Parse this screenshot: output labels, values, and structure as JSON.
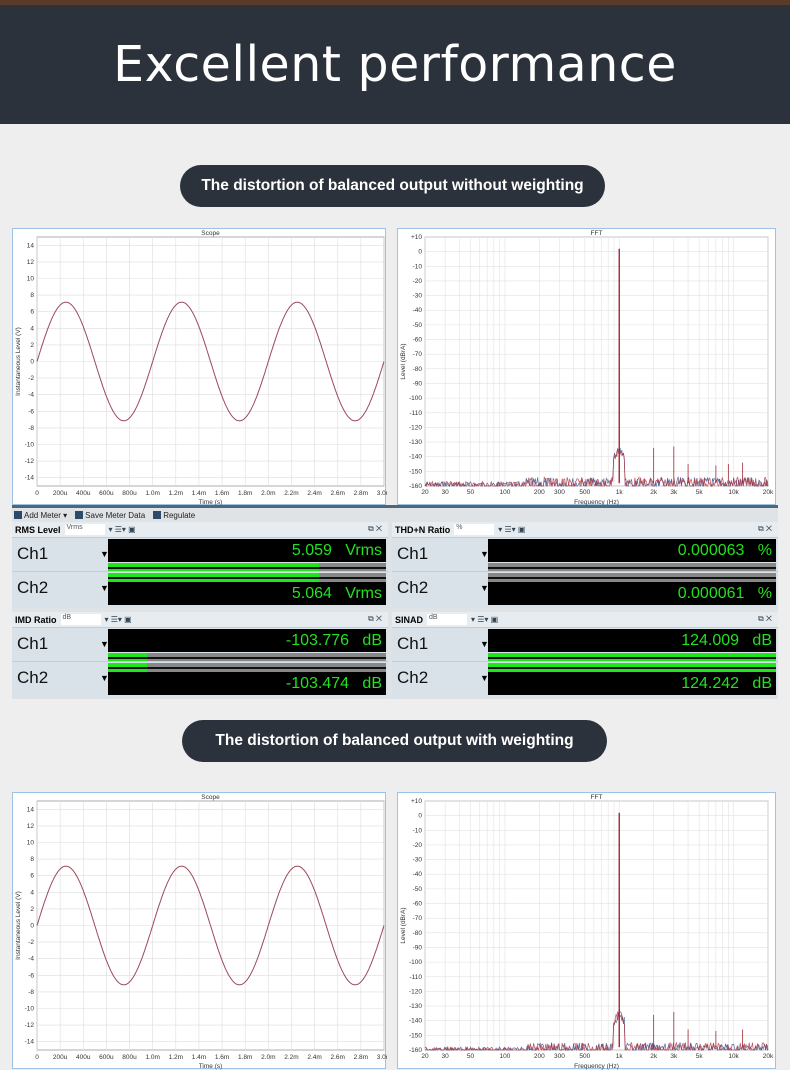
{
  "header": {
    "title": "Excellent performance"
  },
  "section1": {
    "label": "The distortion of balanced output without weighting"
  },
  "section2": {
    "label": "The distortion of balanced output with weighting"
  },
  "toolbar": {
    "add_meter": "Add Meter",
    "save_meter_data": "Save Meter Data",
    "regulate": "Regulate"
  },
  "meters": [
    {
      "title": "RMS Level",
      "unit": "Vrms",
      "rows": [
        {
          "ch": "Ch1",
          "value": "5.059",
          "unit": "Vrms",
          "bar": 0.76
        },
        {
          "ch": "Ch2",
          "value": "5.064",
          "unit": "Vrms",
          "bar": 0.76
        }
      ]
    },
    {
      "title": "THD+N Ratio",
      "unit": "%",
      "rows": [
        {
          "ch": "Ch1",
          "value": "0.000063",
          "unit": "%",
          "bar": 0
        },
        {
          "ch": "Ch2",
          "value": "0.000061",
          "unit": "%",
          "bar": 0
        }
      ]
    },
    {
      "title": "IMD Ratio",
      "unit": "dB",
      "rows": [
        {
          "ch": "Ch1",
          "value": "-103.776",
          "unit": "dB",
          "bar": 0.14
        },
        {
          "ch": "Ch2",
          "value": "-103.474",
          "unit": "dB",
          "bar": 0.14
        }
      ]
    },
    {
      "title": "SINAD",
      "unit": "dB",
      "rows": [
        {
          "ch": "Ch1",
          "value": "124.009",
          "unit": "dB",
          "bar": 1.0
        },
        {
          "ch": "Ch2",
          "value": "124.242",
          "unit": "dB",
          "bar": 1.0
        }
      ]
    }
  ],
  "colors": {
    "header_bg": "#2c323b",
    "trace_ch1": "#b0303a",
    "trace_ch2": "#3a4f8e",
    "meter_text": "#22e11f"
  },
  "chart_data": [
    {
      "type": "line",
      "title": "Scope",
      "xlabel": "Time (s)",
      "ylabel": "Instantaneous Level (V)",
      "xlim": [
        0,
        0.003
      ],
      "ylim": [
        -15,
        15
      ],
      "xticks": [
        "0",
        "200u",
        "400u",
        "600u",
        "800u",
        "1.0m",
        "1.2m",
        "1.4m",
        "1.6m",
        "1.8m",
        "2.0m",
        "2.2m",
        "2.4m",
        "2.6m",
        "2.8m",
        "3.0m"
      ],
      "yticks": [
        "14",
        "12",
        "10",
        "8",
        "6",
        "4",
        "2",
        "0",
        "-2",
        "-4",
        "-6",
        "-8",
        "-10",
        "-12",
        "-14"
      ],
      "grid": true,
      "series": [
        {
          "frequency_hz": 1000,
          "amplitude_v": 7.15
        }
      ]
    },
    {
      "type": "line",
      "title": "FFT",
      "xlabel": "Frequency (Hz)",
      "ylabel": "Level (dBrA)",
      "xscale": "log",
      "xlim": [
        20,
        20000
      ],
      "ylim": [
        -160,
        10
      ],
      "xticks": [
        "20",
        "30",
        "50",
        "100",
        "200",
        "300",
        "500",
        "1k",
        "2k",
        "3k",
        "5k",
        "10k",
        "20k"
      ],
      "yticks": [
        "+10",
        "0",
        "-10",
        "-20",
        "-30",
        "-40",
        "-50",
        "-60",
        "-70",
        "-80",
        "-90",
        "-100",
        "-110",
        "-120",
        "-130",
        "-140",
        "-150",
        "-160"
      ],
      "grid": true,
      "peaks": [
        {
          "x": 1000,
          "y": 2
        },
        {
          "x": 2000,
          "y": -134
        },
        {
          "x": 3000,
          "y": -133
        },
        {
          "x": 4000,
          "y": -145
        },
        {
          "x": 7000,
          "y": -146
        },
        {
          "x": 9000,
          "y": -145
        },
        {
          "x": 12000,
          "y": -144
        }
      ],
      "noise_floor": -155
    },
    {
      "type": "line",
      "title": "Scope",
      "xlabel": "Time (s)",
      "ylabel": "Instantaneous Level (V)",
      "xlim": [
        0,
        0.003
      ],
      "ylim": [
        -15,
        15
      ],
      "xticks": [
        "0",
        "200u",
        "400u",
        "600u",
        "800u",
        "1.0m",
        "1.2m",
        "1.4m",
        "1.6m",
        "1.8m",
        "2.0m",
        "2.2m",
        "2.4m",
        "2.6m",
        "2.8m",
        "3.0m"
      ],
      "yticks": [
        "14",
        "12",
        "10",
        "8",
        "6",
        "4",
        "2",
        "0",
        "-2",
        "-4",
        "-6",
        "-8",
        "-10",
        "-12",
        "-14"
      ],
      "grid": true,
      "series": [
        {
          "frequency_hz": 1000,
          "amplitude_v": 7.15
        }
      ]
    },
    {
      "type": "line",
      "title": "FFT",
      "xlabel": "Frequency (Hz)",
      "ylabel": "Level (dBrA)",
      "xscale": "log",
      "xlim": [
        20,
        20000
      ],
      "ylim": [
        -160,
        10
      ],
      "xticks": [
        "20",
        "30",
        "50",
        "100",
        "200",
        "300",
        "500",
        "1k",
        "2k",
        "3k",
        "5k",
        "10k",
        "20k"
      ],
      "yticks": [
        "+10",
        "0",
        "-10",
        "-20",
        "-30",
        "-40",
        "-50",
        "-60",
        "-70",
        "-80",
        "-90",
        "-100",
        "-110",
        "-120",
        "-130",
        "-140",
        "-150",
        "-160"
      ],
      "grid": true,
      "peaks": [
        {
          "x": 1000,
          "y": 2
        },
        {
          "x": 2000,
          "y": -136
        },
        {
          "x": 3000,
          "y": -134
        },
        {
          "x": 4000,
          "y": -146
        },
        {
          "x": 7000,
          "y": -147
        },
        {
          "x": 12000,
          "y": -146
        }
      ],
      "noise_floor": -156
    }
  ]
}
